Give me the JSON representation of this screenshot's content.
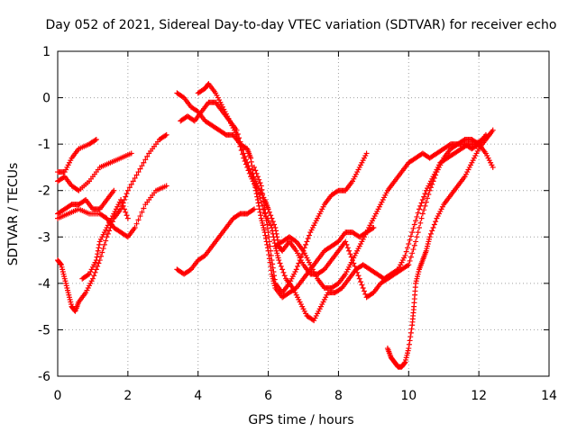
{
  "chart_data": {
    "type": "scatter",
    "title": "Day 052 of 2021, Sidereal Day-to-day VTEC variation (SDTVAR) for receiver echo",
    "xlabel": "GPS time / hours",
    "ylabel": "SDTVAR / TECUs",
    "xlim": [
      0,
      14
    ],
    "ylim": [
      -6,
      1
    ],
    "x_ticks": [
      0,
      2,
      4,
      6,
      8,
      10,
      12,
      14
    ],
    "y_ticks": [
      1,
      0,
      -1,
      -2,
      -3,
      -4,
      -5,
      -6
    ],
    "x_tick_labels": [
      "0",
      "2",
      "4",
      "6",
      "8",
      "10",
      "12",
      "14"
    ],
    "y_tick_labels": [
      "1",
      "0",
      "-1",
      "-2",
      "-3",
      "-4",
      "-5",
      "-6"
    ],
    "grid": true,
    "marker": "plus",
    "color": "#ff0000",
    "series": [
      {
        "points": [
          [
            0,
            -1.6
          ],
          [
            0.2,
            -1.6
          ],
          [
            0.4,
            -1.3
          ],
          [
            0.6,
            -1.1
          ],
          [
            0.9,
            -1.0
          ],
          [
            1.1,
            -0.9
          ]
        ]
      },
      {
        "points": [
          [
            0,
            -1.8
          ],
          [
            0.2,
            -1.7
          ],
          [
            0.4,
            -1.9
          ],
          [
            0.6,
            -2.0
          ],
          [
            0.9,
            -1.8
          ],
          [
            1.2,
            -1.5
          ],
          [
            1.5,
            -1.4
          ],
          [
            1.8,
            -1.3
          ],
          [
            2.1,
            -1.2
          ]
        ]
      },
      {
        "points": [
          [
            0,
            -2.5
          ],
          [
            0.2,
            -2.4
          ],
          [
            0.4,
            -2.3
          ],
          [
            0.6,
            -2.3
          ],
          [
            0.8,
            -2.2
          ],
          [
            1.0,
            -2.4
          ],
          [
            1.2,
            -2.4
          ],
          [
            1.4,
            -2.2
          ],
          [
            1.6,
            -2.0
          ]
        ]
      },
      {
        "points": [
          [
            0,
            -2.6
          ],
          [
            0.3,
            -2.5
          ],
          [
            0.6,
            -2.4
          ],
          [
            0.9,
            -2.5
          ],
          [
            1.2,
            -2.5
          ],
          [
            1.4,
            -2.6
          ],
          [
            1.6,
            -2.8
          ],
          [
            1.8,
            -2.9
          ],
          [
            2.0,
            -3.0
          ],
          [
            2.2,
            -2.8
          ],
          [
            2.5,
            -2.3
          ],
          [
            2.8,
            -2.0
          ],
          [
            3.1,
            -1.9
          ]
        ]
      },
      {
        "points": [
          [
            0,
            -3.5
          ],
          [
            0.1,
            -3.6
          ],
          [
            0.2,
            -3.9
          ],
          [
            0.3,
            -4.2
          ],
          [
            0.4,
            -4.5
          ],
          [
            0.5,
            -4.6
          ],
          [
            0.6,
            -4.4
          ],
          [
            0.8,
            -4.2
          ],
          [
            1.0,
            -3.9
          ],
          [
            1.2,
            -3.5
          ],
          [
            1.4,
            -3.0
          ],
          [
            1.6,
            -2.6
          ],
          [
            1.8,
            -2.4
          ],
          [
            2.0,
            -2.0
          ],
          [
            2.3,
            -1.6
          ],
          [
            2.6,
            -1.2
          ],
          [
            2.9,
            -0.9
          ],
          [
            3.1,
            -0.8
          ]
        ]
      },
      {
        "points": [
          [
            0.7,
            -3.9
          ],
          [
            0.9,
            -3.8
          ],
          [
            1.1,
            -3.5
          ],
          [
            1.2,
            -3.1
          ],
          [
            1.4,
            -2.8
          ],
          [
            1.6,
            -2.5
          ],
          [
            1.8,
            -2.2
          ],
          [
            2.0,
            -2.6
          ]
        ]
      },
      {
        "points": [
          [
            3.4,
            -3.7
          ],
          [
            3.6,
            -3.8
          ],
          [
            3.8,
            -3.7
          ],
          [
            4.0,
            -3.5
          ],
          [
            4.2,
            -3.4
          ],
          [
            4.4,
            -3.2
          ],
          [
            4.6,
            -3.0
          ],
          [
            4.8,
            -2.8
          ],
          [
            5.0,
            -2.6
          ],
          [
            5.2,
            -2.5
          ],
          [
            5.4,
            -2.5
          ],
          [
            5.6,
            -2.4
          ]
        ]
      },
      {
        "points": [
          [
            3.4,
            0.1
          ],
          [
            3.6,
            0.0
          ],
          [
            3.8,
            -0.2
          ],
          [
            4.0,
            -0.3
          ],
          [
            4.2,
            -0.5
          ],
          [
            4.4,
            -0.6
          ],
          [
            4.6,
            -0.7
          ],
          [
            4.8,
            -0.8
          ],
          [
            5.0,
            -0.8
          ],
          [
            5.2,
            -1.0
          ],
          [
            5.4,
            -1.1
          ],
          [
            5.5,
            -1.3
          ],
          [
            5.6,
            -1.8
          ],
          [
            5.7,
            -2.2
          ],
          [
            5.8,
            -2.6
          ],
          [
            5.9,
            -2.9
          ],
          [
            6.0,
            -3.3
          ],
          [
            6.1,
            -3.8
          ],
          [
            6.2,
            -4.1
          ],
          [
            6.4,
            -4.3
          ],
          [
            6.6,
            -4.2
          ],
          [
            6.8,
            -4.1
          ],
          [
            7.0,
            -3.9
          ],
          [
            7.2,
            -3.7
          ],
          [
            7.4,
            -3.5
          ],
          [
            7.6,
            -3.3
          ],
          [
            7.8,
            -3.2
          ],
          [
            8.0,
            -3.1
          ],
          [
            8.2,
            -2.9
          ],
          [
            8.4,
            -2.9
          ],
          [
            8.6,
            -3.0
          ],
          [
            8.8,
            -2.9
          ],
          [
            9.0,
            -2.8
          ]
        ]
      },
      {
        "points": [
          [
            3.5,
            -0.5
          ],
          [
            3.7,
            -0.4
          ],
          [
            3.9,
            -0.5
          ],
          [
            4.1,
            -0.3
          ],
          [
            4.3,
            -0.1
          ],
          [
            4.5,
            -0.1
          ],
          [
            4.7,
            -0.3
          ],
          [
            4.9,
            -0.5
          ],
          [
            5.1,
            -0.7
          ],
          [
            5.3,
            -1.2
          ],
          [
            5.5,
            -1.6
          ],
          [
            5.7,
            -1.9
          ],
          [
            5.9,
            -2.2
          ],
          [
            6.0,
            -2.4
          ],
          [
            6.2,
            -2.8
          ],
          [
            6.3,
            -3.2
          ],
          [
            6.4,
            -3.3
          ],
          [
            6.6,
            -3.1
          ],
          [
            6.8,
            -3.3
          ],
          [
            7.0,
            -3.6
          ],
          [
            7.2,
            -3.8
          ],
          [
            7.4,
            -3.8
          ],
          [
            7.6,
            -3.7
          ],
          [
            7.8,
            -3.5
          ],
          [
            8.0,
            -3.3
          ],
          [
            8.2,
            -3.1
          ],
          [
            8.4,
            -3.5
          ],
          [
            8.6,
            -3.9
          ],
          [
            8.8,
            -4.3
          ],
          [
            9.0,
            -4.2
          ],
          [
            9.2,
            -4.0
          ],
          [
            9.4,
            -3.9
          ],
          [
            9.6,
            -3.8
          ],
          [
            9.8,
            -3.7
          ],
          [
            10.0,
            -3.6
          ],
          [
            10.2,
            -3.1
          ],
          [
            10.4,
            -2.5
          ],
          [
            10.6,
            -2.0
          ],
          [
            10.8,
            -1.6
          ],
          [
            11.0,
            -1.3
          ],
          [
            11.2,
            -1.1
          ],
          [
            11.4,
            -1.0
          ],
          [
            11.6,
            -0.9
          ],
          [
            11.8,
            -0.9
          ],
          [
            12.0,
            -1.0
          ],
          [
            12.2,
            -1.2
          ],
          [
            12.4,
            -1.5
          ]
        ]
      },
      {
        "points": [
          [
            4.0,
            0.1
          ],
          [
            4.2,
            0.2
          ],
          [
            4.3,
            0.3
          ],
          [
            4.5,
            0.1
          ],
          [
            4.7,
            -0.2
          ],
          [
            4.9,
            -0.5
          ],
          [
            5.1,
            -0.8
          ],
          [
            5.3,
            -1.3
          ],
          [
            5.5,
            -1.7
          ],
          [
            5.7,
            -2.0
          ],
          [
            5.9,
            -2.5
          ],
          [
            6.1,
            -2.8
          ],
          [
            6.2,
            -3.2
          ],
          [
            6.3,
            -3.5
          ],
          [
            6.5,
            -3.9
          ],
          [
            6.7,
            -4.1
          ],
          [
            6.9,
            -4.4
          ],
          [
            7.1,
            -4.7
          ],
          [
            7.3,
            -4.8
          ],
          [
            7.5,
            -4.5
          ],
          [
            7.7,
            -4.2
          ],
          [
            7.9,
            -4.2
          ],
          [
            8.1,
            -4.1
          ],
          [
            8.3,
            -3.9
          ],
          [
            8.5,
            -3.7
          ],
          [
            8.7,
            -3.6
          ],
          [
            8.9,
            -3.7
          ],
          [
            9.1,
            -3.8
          ],
          [
            9.3,
            -3.9
          ],
          [
            9.5,
            -3.8
          ],
          [
            9.7,
            -3.7
          ],
          [
            9.9,
            -3.4
          ],
          [
            10.1,
            -2.9
          ],
          [
            10.3,
            -2.4
          ],
          [
            10.5,
            -2.0
          ],
          [
            10.7,
            -1.7
          ],
          [
            10.9,
            -1.4
          ],
          [
            11.1,
            -1.3
          ],
          [
            11.3,
            -1.2
          ],
          [
            11.5,
            -1.1
          ],
          [
            11.7,
            -1.0
          ],
          [
            11.9,
            -1.0
          ],
          [
            12.1,
            -0.9
          ],
          [
            12.3,
            -0.8
          ]
        ]
      },
      {
        "points": [
          [
            5.6,
            -1.5
          ],
          [
            5.8,
            -1.9
          ],
          [
            5.9,
            -2.4
          ],
          [
            6.0,
            -2.9
          ],
          [
            6.1,
            -3.5
          ],
          [
            6.2,
            -4.0
          ],
          [
            6.4,
            -4.2
          ],
          [
            6.6,
            -4.0
          ],
          [
            6.8,
            -3.7
          ],
          [
            7.0,
            -3.3
          ],
          [
            7.2,
            -2.9
          ],
          [
            7.4,
            -2.6
          ],
          [
            7.6,
            -2.3
          ],
          [
            7.8,
            -2.1
          ],
          [
            8.0,
            -2.0
          ],
          [
            8.2,
            -2.0
          ],
          [
            8.4,
            -1.8
          ],
          [
            8.6,
            -1.5
          ],
          [
            8.8,
            -1.2
          ]
        ]
      },
      {
        "points": [
          [
            6.2,
            -3.2
          ],
          [
            6.4,
            -3.1
          ],
          [
            6.6,
            -3.0
          ],
          [
            6.8,
            -3.1
          ],
          [
            7.0,
            -3.3
          ],
          [
            7.2,
            -3.6
          ],
          [
            7.4,
            -3.9
          ],
          [
            7.6,
            -4.1
          ],
          [
            7.8,
            -4.1
          ],
          [
            8.0,
            -4.0
          ],
          [
            8.2,
            -3.8
          ],
          [
            8.4,
            -3.5
          ],
          [
            8.6,
            -3.2
          ],
          [
            8.8,
            -2.9
          ],
          [
            9.0,
            -2.6
          ],
          [
            9.2,
            -2.3
          ],
          [
            9.4,
            -2.0
          ],
          [
            9.6,
            -1.8
          ],
          [
            9.8,
            -1.6
          ],
          [
            10.0,
            -1.4
          ],
          [
            10.2,
            -1.3
          ],
          [
            10.4,
            -1.2
          ],
          [
            10.6,
            -1.3
          ],
          [
            10.8,
            -1.2
          ],
          [
            11.0,
            -1.1
          ],
          [
            11.2,
            -1.0
          ],
          [
            11.4,
            -1.0
          ],
          [
            11.6,
            -1.0
          ],
          [
            11.8,
            -1.1
          ],
          [
            12.0,
            -1.0
          ],
          [
            12.2,
            -0.8
          ]
        ]
      },
      {
        "points": [
          [
            9.4,
            -5.4
          ],
          [
            9.5,
            -5.6
          ],
          [
            9.6,
            -5.7
          ],
          [
            9.7,
            -5.8
          ],
          [
            9.8,
            -5.8
          ],
          [
            9.9,
            -5.7
          ],
          [
            10.0,
            -5.4
          ],
          [
            10.1,
            -4.9
          ],
          [
            10.15,
            -4.5
          ],
          [
            10.2,
            -4.0
          ],
          [
            10.3,
            -3.7
          ],
          [
            10.4,
            -3.5
          ],
          [
            10.5,
            -3.3
          ],
          [
            10.6,
            -3.0
          ],
          [
            10.8,
            -2.6
          ],
          [
            11.0,
            -2.3
          ],
          [
            11.2,
            -2.1
          ],
          [
            11.4,
            -1.9
          ],
          [
            11.6,
            -1.7
          ],
          [
            11.8,
            -1.4
          ],
          [
            12.0,
            -1.1
          ],
          [
            12.2,
            -0.9
          ],
          [
            12.4,
            -0.7
          ]
        ]
      }
    ]
  }
}
